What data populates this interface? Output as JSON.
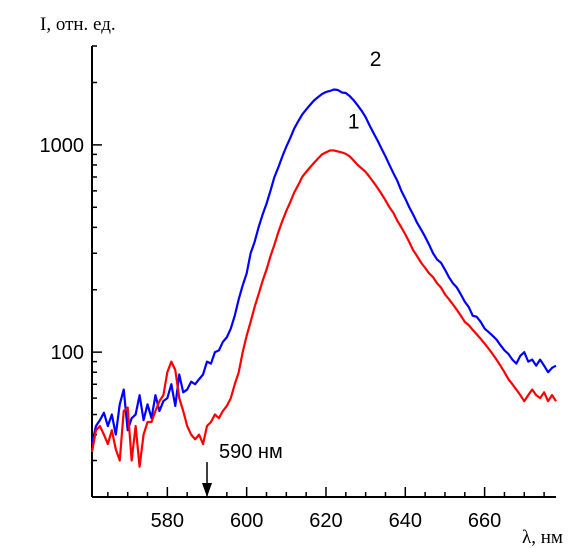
{
  "chart_data": {
    "type": "line",
    "y_axis_title": "I, отн. ед.",
    "x_axis_title": "λ, нм",
    "yscale": "log",
    "ylim": [
      20,
      3000
    ],
    "xlim": [
      561,
      678
    ],
    "x_ticks": [
      580,
      600,
      620,
      640,
      660
    ],
    "y_ticks": [
      100,
      1000
    ],
    "x_tick_labels": [
      "580",
      "600",
      "620",
      "640",
      "660"
    ],
    "y_tick_labels": [
      "100",
      "1000"
    ],
    "grid": false,
    "series": [
      {
        "name": "2",
        "color": "#0000ff",
        "points": [
          [
            561,
            36
          ],
          [
            562,
            44
          ],
          [
            563,
            47
          ],
          [
            564,
            51
          ],
          [
            565,
            44
          ],
          [
            566,
            50
          ],
          [
            567,
            40
          ],
          [
            568,
            56
          ],
          [
            569,
            66
          ],
          [
            570,
            42
          ],
          [
            571,
            48
          ],
          [
            572,
            50
          ],
          [
            573,
            62
          ],
          [
            574,
            47
          ],
          [
            575,
            56
          ],
          [
            576,
            48
          ],
          [
            577,
            62
          ],
          [
            578,
            52
          ],
          [
            579,
            58
          ],
          [
            580,
            60
          ],
          [
            581,
            70
          ],
          [
            582,
            55
          ],
          [
            583,
            78
          ],
          [
            584,
            64
          ],
          [
            585,
            66
          ],
          [
            586,
            72
          ],
          [
            587,
            70
          ],
          [
            588,
            74
          ],
          [
            589,
            78
          ],
          [
            590,
            90
          ],
          [
            591,
            88
          ],
          [
            592,
            100
          ],
          [
            593,
            102
          ],
          [
            594,
            112
          ],
          [
            595,
            118
          ],
          [
            596,
            130
          ],
          [
            597,
            150
          ],
          [
            598,
            180
          ],
          [
            599,
            210
          ],
          [
            600,
            240
          ],
          [
            601,
            300
          ],
          [
            602,
            340
          ],
          [
            603,
            400
          ],
          [
            604,
            460
          ],
          [
            605,
            520
          ],
          [
            606,
            600
          ],
          [
            607,
            700
          ],
          [
            608,
            780
          ],
          [
            609,
            880
          ],
          [
            610,
            980
          ],
          [
            611,
            1080
          ],
          [
            612,
            1200
          ],
          [
            613,
            1300
          ],
          [
            614,
            1400
          ],
          [
            615,
            1480
          ],
          [
            616,
            1560
          ],
          [
            617,
            1640
          ],
          [
            618,
            1700
          ],
          [
            619,
            1760
          ],
          [
            620,
            1800
          ],
          [
            621,
            1820
          ],
          [
            622,
            1850
          ],
          [
            623,
            1840
          ],
          [
            624,
            1790
          ],
          [
            625,
            1780
          ],
          [
            626,
            1720
          ],
          [
            627,
            1640
          ],
          [
            628,
            1550
          ],
          [
            629,
            1460
          ],
          [
            630,
            1360
          ],
          [
            631,
            1240
          ],
          [
            632,
            1140
          ],
          [
            633,
            1050
          ],
          [
            634,
            960
          ],
          [
            635,
            880
          ],
          [
            636,
            800
          ],
          [
            637,
            730
          ],
          [
            638,
            670
          ],
          [
            639,
            600
          ],
          [
            640,
            550
          ],
          [
            641,
            500
          ],
          [
            642,
            460
          ],
          [
            643,
            420
          ],
          [
            644,
            390
          ],
          [
            645,
            360
          ],
          [
            646,
            330
          ],
          [
            647,
            300
          ],
          [
            648,
            280
          ],
          [
            649,
            270
          ],
          [
            650,
            250
          ],
          [
            651,
            230
          ],
          [
            652,
            215
          ],
          [
            653,
            205
          ],
          [
            654,
            190
          ],
          [
            655,
            175
          ],
          [
            656,
            165
          ],
          [
            657,
            150
          ],
          [
            658,
            148
          ],
          [
            659,
            140
          ],
          [
            660,
            130
          ],
          [
            661,
            125
          ],
          [
            662,
            120
          ],
          [
            663,
            115
          ],
          [
            664,
            108
          ],
          [
            665,
            102
          ],
          [
            666,
            98
          ],
          [
            667,
            92
          ],
          [
            668,
            88
          ],
          [
            669,
            96
          ],
          [
            670,
            100
          ],
          [
            671,
            90
          ],
          [
            672,
            92
          ],
          [
            673,
            86
          ],
          [
            674,
            92
          ],
          [
            675,
            86
          ],
          [
            676,
            80
          ],
          [
            677,
            84
          ],
          [
            678,
            86
          ]
        ]
      },
      {
        "name": "1",
        "color": "#ff0000",
        "points": [
          [
            561,
            33
          ],
          [
            562,
            42
          ],
          [
            563,
            44
          ],
          [
            564,
            40
          ],
          [
            565,
            36
          ],
          [
            566,
            42
          ],
          [
            567,
            34
          ],
          [
            568,
            30
          ],
          [
            569,
            52
          ],
          [
            570,
            54
          ],
          [
            571,
            30
          ],
          [
            572,
            44
          ],
          [
            573,
            28
          ],
          [
            574,
            40
          ],
          [
            575,
            46
          ],
          [
            576,
            46
          ],
          [
            577,
            52
          ],
          [
            578,
            58
          ],
          [
            579,
            62
          ],
          [
            580,
            80
          ],
          [
            581,
            90
          ],
          [
            582,
            82
          ],
          [
            583,
            60
          ],
          [
            584,
            52
          ],
          [
            585,
            44
          ],
          [
            586,
            40
          ],
          [
            587,
            38
          ],
          [
            588,
            40
          ],
          [
            589,
            36
          ],
          [
            590,
            44
          ],
          [
            591,
            46
          ],
          [
            592,
            50
          ],
          [
            593,
            48
          ],
          [
            594,
            52
          ],
          [
            595,
            55
          ],
          [
            596,
            60
          ],
          [
            597,
            70
          ],
          [
            598,
            80
          ],
          [
            599,
            100
          ],
          [
            600,
            120
          ],
          [
            601,
            140
          ],
          [
            602,
            165
          ],
          [
            603,
            190
          ],
          [
            604,
            220
          ],
          [
            605,
            250
          ],
          [
            606,
            290
          ],
          [
            607,
            330
          ],
          [
            608,
            380
          ],
          [
            609,
            430
          ],
          [
            610,
            480
          ],
          [
            611,
            530
          ],
          [
            612,
            590
          ],
          [
            613,
            640
          ],
          [
            614,
            700
          ],
          [
            615,
            740
          ],
          [
            616,
            780
          ],
          [
            617,
            820
          ],
          [
            618,
            860
          ],
          [
            619,
            900
          ],
          [
            620,
            920
          ],
          [
            621,
            940
          ],
          [
            622,
            940
          ],
          [
            623,
            930
          ],
          [
            624,
            920
          ],
          [
            625,
            905
          ],
          [
            626,
            880
          ],
          [
            627,
            840
          ],
          [
            628,
            800
          ],
          [
            629,
            770
          ],
          [
            630,
            740
          ],
          [
            631,
            700
          ],
          [
            632,
            660
          ],
          [
            633,
            620
          ],
          [
            634,
            580
          ],
          [
            635,
            540
          ],
          [
            636,
            500
          ],
          [
            637,
            470
          ],
          [
            638,
            430
          ],
          [
            639,
            400
          ],
          [
            640,
            370
          ],
          [
            641,
            340
          ],
          [
            642,
            310
          ],
          [
            643,
            290
          ],
          [
            644,
            270
          ],
          [
            645,
            255
          ],
          [
            646,
            240
          ],
          [
            647,
            230
          ],
          [
            648,
            215
          ],
          [
            649,
            205
          ],
          [
            650,
            190
          ],
          [
            651,
            180
          ],
          [
            652,
            170
          ],
          [
            653,
            160
          ],
          [
            654,
            150
          ],
          [
            655,
            140
          ],
          [
            656,
            135
          ],
          [
            657,
            128
          ],
          [
            658,
            122
          ],
          [
            659,
            116
          ],
          [
            660,
            110
          ],
          [
            661,
            104
          ],
          [
            662,
            98
          ],
          [
            663,
            92
          ],
          [
            664,
            86
          ],
          [
            665,
            80
          ],
          [
            666,
            74
          ],
          [
            667,
            70
          ],
          [
            668,
            66
          ],
          [
            669,
            62
          ],
          [
            670,
            58
          ],
          [
            671,
            62
          ],
          [
            672,
            66
          ],
          [
            673,
            62
          ],
          [
            674,
            60
          ],
          [
            675,
            64
          ],
          [
            676,
            58
          ],
          [
            677,
            62
          ],
          [
            678,
            58
          ]
        ]
      }
    ],
    "annotations": [
      {
        "text": "590 нм",
        "x": 590,
        "y": 36,
        "arrow": "down"
      }
    ]
  }
}
